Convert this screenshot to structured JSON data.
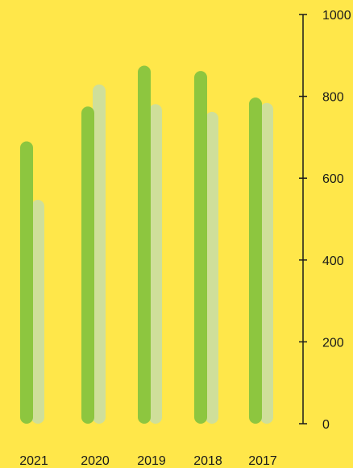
{
  "chart_data": {
    "type": "bar",
    "categories": [
      "2021",
      "2020",
      "2019",
      "2018",
      "2017"
    ],
    "series": [
      {
        "values": [
          690,
          775,
          875,
          862,
          797
        ]
      },
      {
        "values": [
          547,
          829,
          781,
          762,
          784
        ]
      }
    ],
    "yticks": [
      "0",
      "200",
      "400",
      "600",
      "800",
      "1000"
    ],
    "ylim": [
      0,
      1000
    ],
    "ylabel": "",
    "xlabel": "",
    "title": "",
    "axis_side": "right",
    "grid": false,
    "legend": "none",
    "colors": {
      "background": "#FFE74A",
      "series": [
        "#8DC63F",
        "#CFDF9A"
      ],
      "axis": "#1a1a1a",
      "text": "#1a1a1a"
    }
  }
}
